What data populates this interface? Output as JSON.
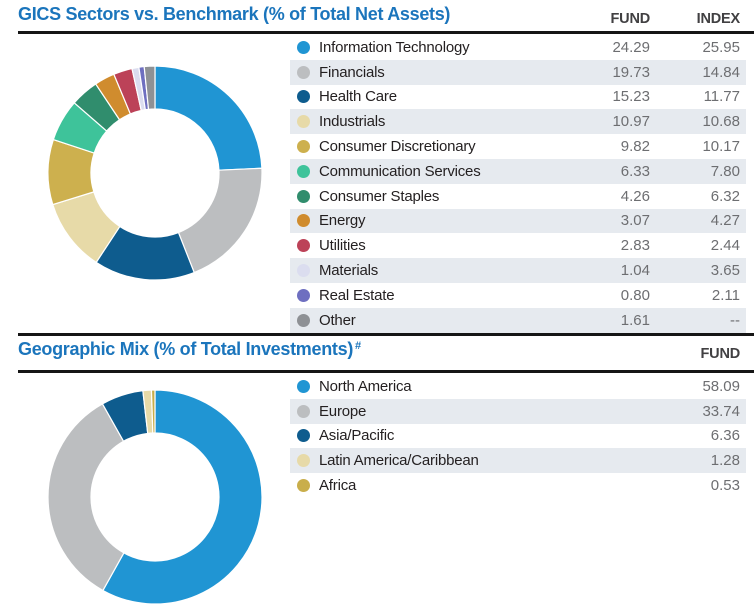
{
  "colors": {
    "title_blue": "#1B75BC",
    "column_header_text": "#414042",
    "label_text": "#231F20",
    "value_text": "#6D6E71",
    "row_shade": "#E6EAEF",
    "rule": "#161616"
  },
  "sections": [
    {
      "title": "GICS Sectors vs. Benchmark (% of Total Net Assets)",
      "title_superscript": "",
      "columns": {
        "fund": "FUND",
        "index": "INDEX"
      },
      "rows": [
        {
          "label": "Information Technology",
          "bullet_icon": "circle-swatch",
          "color": "#2095D3",
          "fund": "24.29",
          "index": "25.95"
        },
        {
          "label": "Financials",
          "bullet_icon": "circle-swatch",
          "color": "#BCBEC0",
          "fund": "19.73",
          "index": "14.84"
        },
        {
          "label": "Health Care",
          "bullet_icon": "circle-swatch",
          "color": "#0E5C8E",
          "fund": "15.23",
          "index": "11.77"
        },
        {
          "label": "Industrials",
          "bullet_icon": "circle-swatch",
          "color": "#E7DAA8",
          "fund": "10.97",
          "index": "10.68"
        },
        {
          "label": "Consumer Discretionary",
          "bullet_icon": "circle-swatch",
          "color": "#CDB04E",
          "fund": "9.82",
          "index": "10.17"
        },
        {
          "label": "Communication Services",
          "bullet_icon": "circle-swatch",
          "color": "#3EC39A",
          "fund": "6.33",
          "index": "7.80"
        },
        {
          "label": "Consumer Staples",
          "bullet_icon": "circle-swatch",
          "color": "#308D6D",
          "fund": "4.26",
          "index": "6.32"
        },
        {
          "label": "Energy",
          "bullet_icon": "circle-swatch",
          "color": "#D08C2E",
          "fund": "3.07",
          "index": "4.27"
        },
        {
          "label": "Utilities",
          "bullet_icon": "circle-swatch",
          "color": "#BC4258",
          "fund": "2.83",
          "index": "2.44"
        },
        {
          "label": "Materials",
          "bullet_icon": "circle-swatch",
          "color": "#DBDDEF",
          "fund": "1.04",
          "index": "3.65"
        },
        {
          "label": "Real Estate",
          "bullet_icon": "circle-swatch",
          "color": "#6E6FC0",
          "fund": "0.80",
          "index": "2.11"
        },
        {
          "label": "Other",
          "bullet_icon": "circle-swatch",
          "color": "#8E9195",
          "fund": "1.61",
          "index": "--"
        }
      ]
    },
    {
      "title": "Geographic Mix (% of Total Investments)",
      "title_superscript": "#",
      "columns": {
        "fund": "FUND"
      },
      "rows": [
        {
          "label": "North America",
          "bullet_icon": "circle-swatch",
          "color": "#2095D3",
          "fund": "58.09"
        },
        {
          "label": "Europe",
          "bullet_icon": "circle-swatch",
          "color": "#BCBEC0",
          "fund": "33.74"
        },
        {
          "label": "Asia/Pacific",
          "bullet_icon": "circle-swatch",
          "color": "#0E5C8E",
          "fund": "6.36"
        },
        {
          "label": "Latin America/Caribbean",
          "bullet_icon": "circle-swatch",
          "color": "#E7DAA8",
          "fund": "1.28"
        },
        {
          "label": "Africa",
          "bullet_icon": "circle-swatch",
          "color": "#C9AE4B",
          "fund": "0.53"
        }
      ]
    }
  ],
  "chart_data": [
    {
      "type": "pie",
      "subtype": "donut",
      "title": "GICS Sectors vs. Benchmark (% of Total Net Assets)",
      "labels": [
        "Information Technology",
        "Financials",
        "Health Care",
        "Industrials",
        "Consumer Discretionary",
        "Communication Services",
        "Consumer Staples",
        "Energy",
        "Utilities",
        "Materials",
        "Real Estate",
        "Other"
      ],
      "series": [
        {
          "name": "FUND",
          "values": [
            24.29,
            19.73,
            15.23,
            10.97,
            9.82,
            6.33,
            4.26,
            3.07,
            2.83,
            1.04,
            0.8,
            1.61
          ]
        },
        {
          "name": "INDEX",
          "values": [
            25.95,
            14.84,
            11.77,
            10.68,
            10.17,
            7.8,
            6.32,
            4.27,
            2.44,
            3.65,
            2.11,
            null
          ]
        }
      ],
      "donut_shows_series": "FUND",
      "colors": [
        "#2095D3",
        "#BCBEC0",
        "#0E5C8E",
        "#E7DAA8",
        "#CDB04E",
        "#3EC39A",
        "#308D6D",
        "#D08C2E",
        "#BC4258",
        "#DBDDEF",
        "#6E6FC0",
        "#8E9195"
      ],
      "start_angle_deg": -90,
      "clockwise": true,
      "legend_position": "right"
    },
    {
      "type": "pie",
      "subtype": "donut",
      "title": "Geographic Mix (% of Total Investments) #",
      "labels": [
        "North America",
        "Europe",
        "Asia/Pacific",
        "Latin America/Caribbean",
        "Africa"
      ],
      "series": [
        {
          "name": "FUND",
          "values": [
            58.09,
            33.74,
            6.36,
            1.28,
            0.53
          ]
        }
      ],
      "donut_shows_series": "FUND",
      "colors": [
        "#2095D3",
        "#BCBEC0",
        "#0E5C8E",
        "#E7DAA8",
        "#C9AE4B"
      ],
      "start_angle_deg": -90,
      "clockwise": true,
      "legend_position": "right"
    }
  ]
}
